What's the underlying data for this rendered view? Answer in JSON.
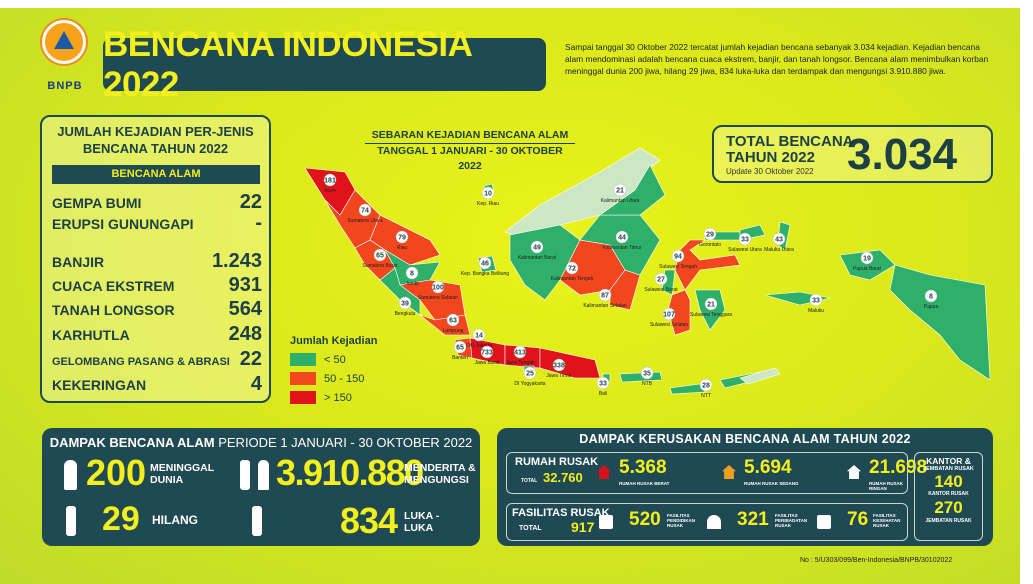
{
  "header": {
    "logo_text": "BNPB",
    "title": "BENCANA INDONESIA 2022",
    "summary": "Sampai tanggal 30 Oktober 2022 tercatat jumlah kejadian bencana sebanyak 3.034 kejadian. Kejadian bencana alam mendominasi adalah bencana cuaca ekstrem, banjir, dan tanah longsor. Bencana alam menimbulkan korban meninggal dunia 200 jiwa, hilang 29 jiwa, 834 luka-luka dan terdampak dan mengungsi 3.910.880 jiwa."
  },
  "per_jenis": {
    "title_1": "JUMLAH KEJADIAN PER-JENIS",
    "title_2": "BENCANA TAHUN 2022",
    "bar": "BENCANA ALAM",
    "rows": [
      {
        "name": "GEMPA BUMI",
        "value": "22"
      },
      {
        "name": "ERUPSI GUNUNGAPI",
        "value": "-"
      },
      {
        "name": "BANJIR",
        "value": "1.243"
      },
      {
        "name": "CUACA EKSTREM",
        "value": "931"
      },
      {
        "name": "TANAH LONGSOR",
        "value": "564"
      },
      {
        "name": "KARHUTLA",
        "value": "248"
      },
      {
        "name": "GELOMBANG PASANG & ABRASI",
        "value": "22"
      },
      {
        "name": "KEKERINGAN",
        "value": "4"
      }
    ]
  },
  "map": {
    "title_1": "SEBARAN KEJADIAN BENCANA ALAM",
    "title_2": "TANGGAL 1 JANUARI - 30 OKTOBER 2022",
    "colors": {
      "low": "#2fb06a",
      "mid": "#f2461f",
      "high": "#e0121a"
    },
    "legend": {
      "title": "Jumlah Kejadian",
      "items": [
        {
          "label": "< 50",
          "level": "low"
        },
        {
          "label": "50 - 150",
          "level": "mid"
        },
        {
          "label": "> 150",
          "level": "high"
        }
      ]
    },
    "regions": [
      {
        "name": "Aceh",
        "count": "181",
        "level": "high"
      },
      {
        "name": "Sumatera Utara",
        "count": "74",
        "level": "mid"
      },
      {
        "name": "Riau",
        "count": "79",
        "level": "mid"
      },
      {
        "name": "Sumatera Barat",
        "count": "65",
        "level": "mid"
      },
      {
        "name": "Jambi",
        "count": "8",
        "level": "low"
      },
      {
        "name": "Sumatera Selatan",
        "count": "100",
        "level": "mid"
      },
      {
        "name": "Bengkulu",
        "count": "39",
        "level": "low"
      },
      {
        "name": "Lampung",
        "count": "63",
        "level": "mid"
      },
      {
        "name": "Kep. Riau",
        "count": "10",
        "level": "low"
      },
      {
        "name": "Kep. Bangka Belitung",
        "count": "46",
        "level": "low"
      },
      {
        "name": "DKI Jakarta",
        "count": "14",
        "level": "low"
      },
      {
        "name": "Banten",
        "count": "65",
        "level": "mid"
      },
      {
        "name": "Jawa Barat",
        "count": "733",
        "level": "high"
      },
      {
        "name": "Jawa Tengah",
        "count": "413",
        "level": "high"
      },
      {
        "name": "DI Yogyakarta",
        "count": "25",
        "level": "low"
      },
      {
        "name": "Jawa Timur",
        "count": "338",
        "level": "high"
      },
      {
        "name": "Bali",
        "count": "33",
        "level": "low"
      },
      {
        "name": "Kalimantan Barat",
        "count": "49",
        "level": "low"
      },
      {
        "name": "Kalimantan Tengah",
        "count": "72",
        "level": "mid"
      },
      {
        "name": "Kalimantan Selatan",
        "count": "87",
        "level": "mid"
      },
      {
        "name": "Kalimantan Timur",
        "count": "44",
        "level": "low"
      },
      {
        "name": "Kalimantan Utara",
        "count": "21",
        "level": "low"
      },
      {
        "name": "Sulawesi Tengah",
        "count": "94",
        "level": "mid"
      },
      {
        "name": "Gorontalo",
        "count": "29",
        "level": "low"
      },
      {
        "name": "Sulawesi Utara",
        "count": "33",
        "level": "low"
      },
      {
        "name": "Maluku Utara",
        "count": "43",
        "level": "low"
      },
      {
        "name": "Sulawesi Barat",
        "count": "27",
        "level": "low"
      },
      {
        "name": "Sulawesi Selatan",
        "count": "107",
        "level": "mid"
      },
      {
        "name": "Sulawesi Tenggara",
        "count": "21",
        "level": "low"
      },
      {
        "name": "Maluku",
        "count": "33",
        "level": "low"
      },
      {
        "name": "Papua Barat",
        "count": "19",
        "level": "low"
      },
      {
        "name": "Papua",
        "count": "8",
        "level": "low"
      },
      {
        "name": "NTB",
        "count": "35",
        "level": "low"
      },
      {
        "name": "NTT",
        "count": "28",
        "level": "low"
      }
    ]
  },
  "total": {
    "line1": "TOTAL BENCANA",
    "line2": "TAHUN 2022",
    "update": "Update 30 Oktober 2022",
    "value": "3.034"
  },
  "impact": {
    "title_bold": "DAMPAK BENCANA ALAM",
    "title_thin": "PERIODE 1 JANUARI - 30 OKTOBER 2022",
    "dead": {
      "value": "200",
      "l1": "MENINGGAL",
      "l2": "DUNIA"
    },
    "affected": {
      "value": "3.910.880",
      "l1": "MENDERITA &",
      "l2": "MENGUNGSI"
    },
    "missing": {
      "value": "29",
      "l1": "HILANG"
    },
    "injured": {
      "value": "834",
      "l1": "LUKA -",
      "l2": "LUKA"
    }
  },
  "damage": {
    "title": "DAMPAK KERUSAKAN  BENCANA ALAM TAHUN 2022",
    "houses": {
      "label": "RUMAH RUSAK",
      "total_label": "TOTAL",
      "total": "32.760",
      "items": [
        {
          "value": "5.368",
          "label": "RUMAH RUSAK BERAT",
          "color": "#d8121a"
        },
        {
          "value": "5.694",
          "label": "RUMAH RUSAK SEDANG",
          "color": "#f0a020"
        },
        {
          "value": "21.698",
          "label": "RUMAH RUSAK RINGAN",
          "color": "#ffffff"
        }
      ]
    },
    "facilities": {
      "label": "FASILITAS RUSAK",
      "total_label": "TOTAL",
      "total": "917",
      "items": [
        {
          "value": "520",
          "l1": "FASILITAS",
          "l2": "PENDIDIKAN",
          "l3": "RUSAK"
        },
        {
          "value": "321",
          "l1": "FASILITAS",
          "l2": "PERIBADATAN",
          "l3": "RUSAK"
        },
        {
          "value": "76",
          "l1": "FASILITAS",
          "l2": "KESEHATAN",
          "l3": "RUSAK"
        }
      ]
    },
    "office": {
      "title_1": "KANTOR &",
      "title_2": "JEMBATAN RUSAK",
      "office_value": "140",
      "office_label": "KANTOR RUSAK",
      "bridge_value": "270",
      "bridge_label": "JEMBATAN RUSAK"
    }
  },
  "footer": "No : 5/U303/099/Ben-Indonesia/BNPB/30102022"
}
